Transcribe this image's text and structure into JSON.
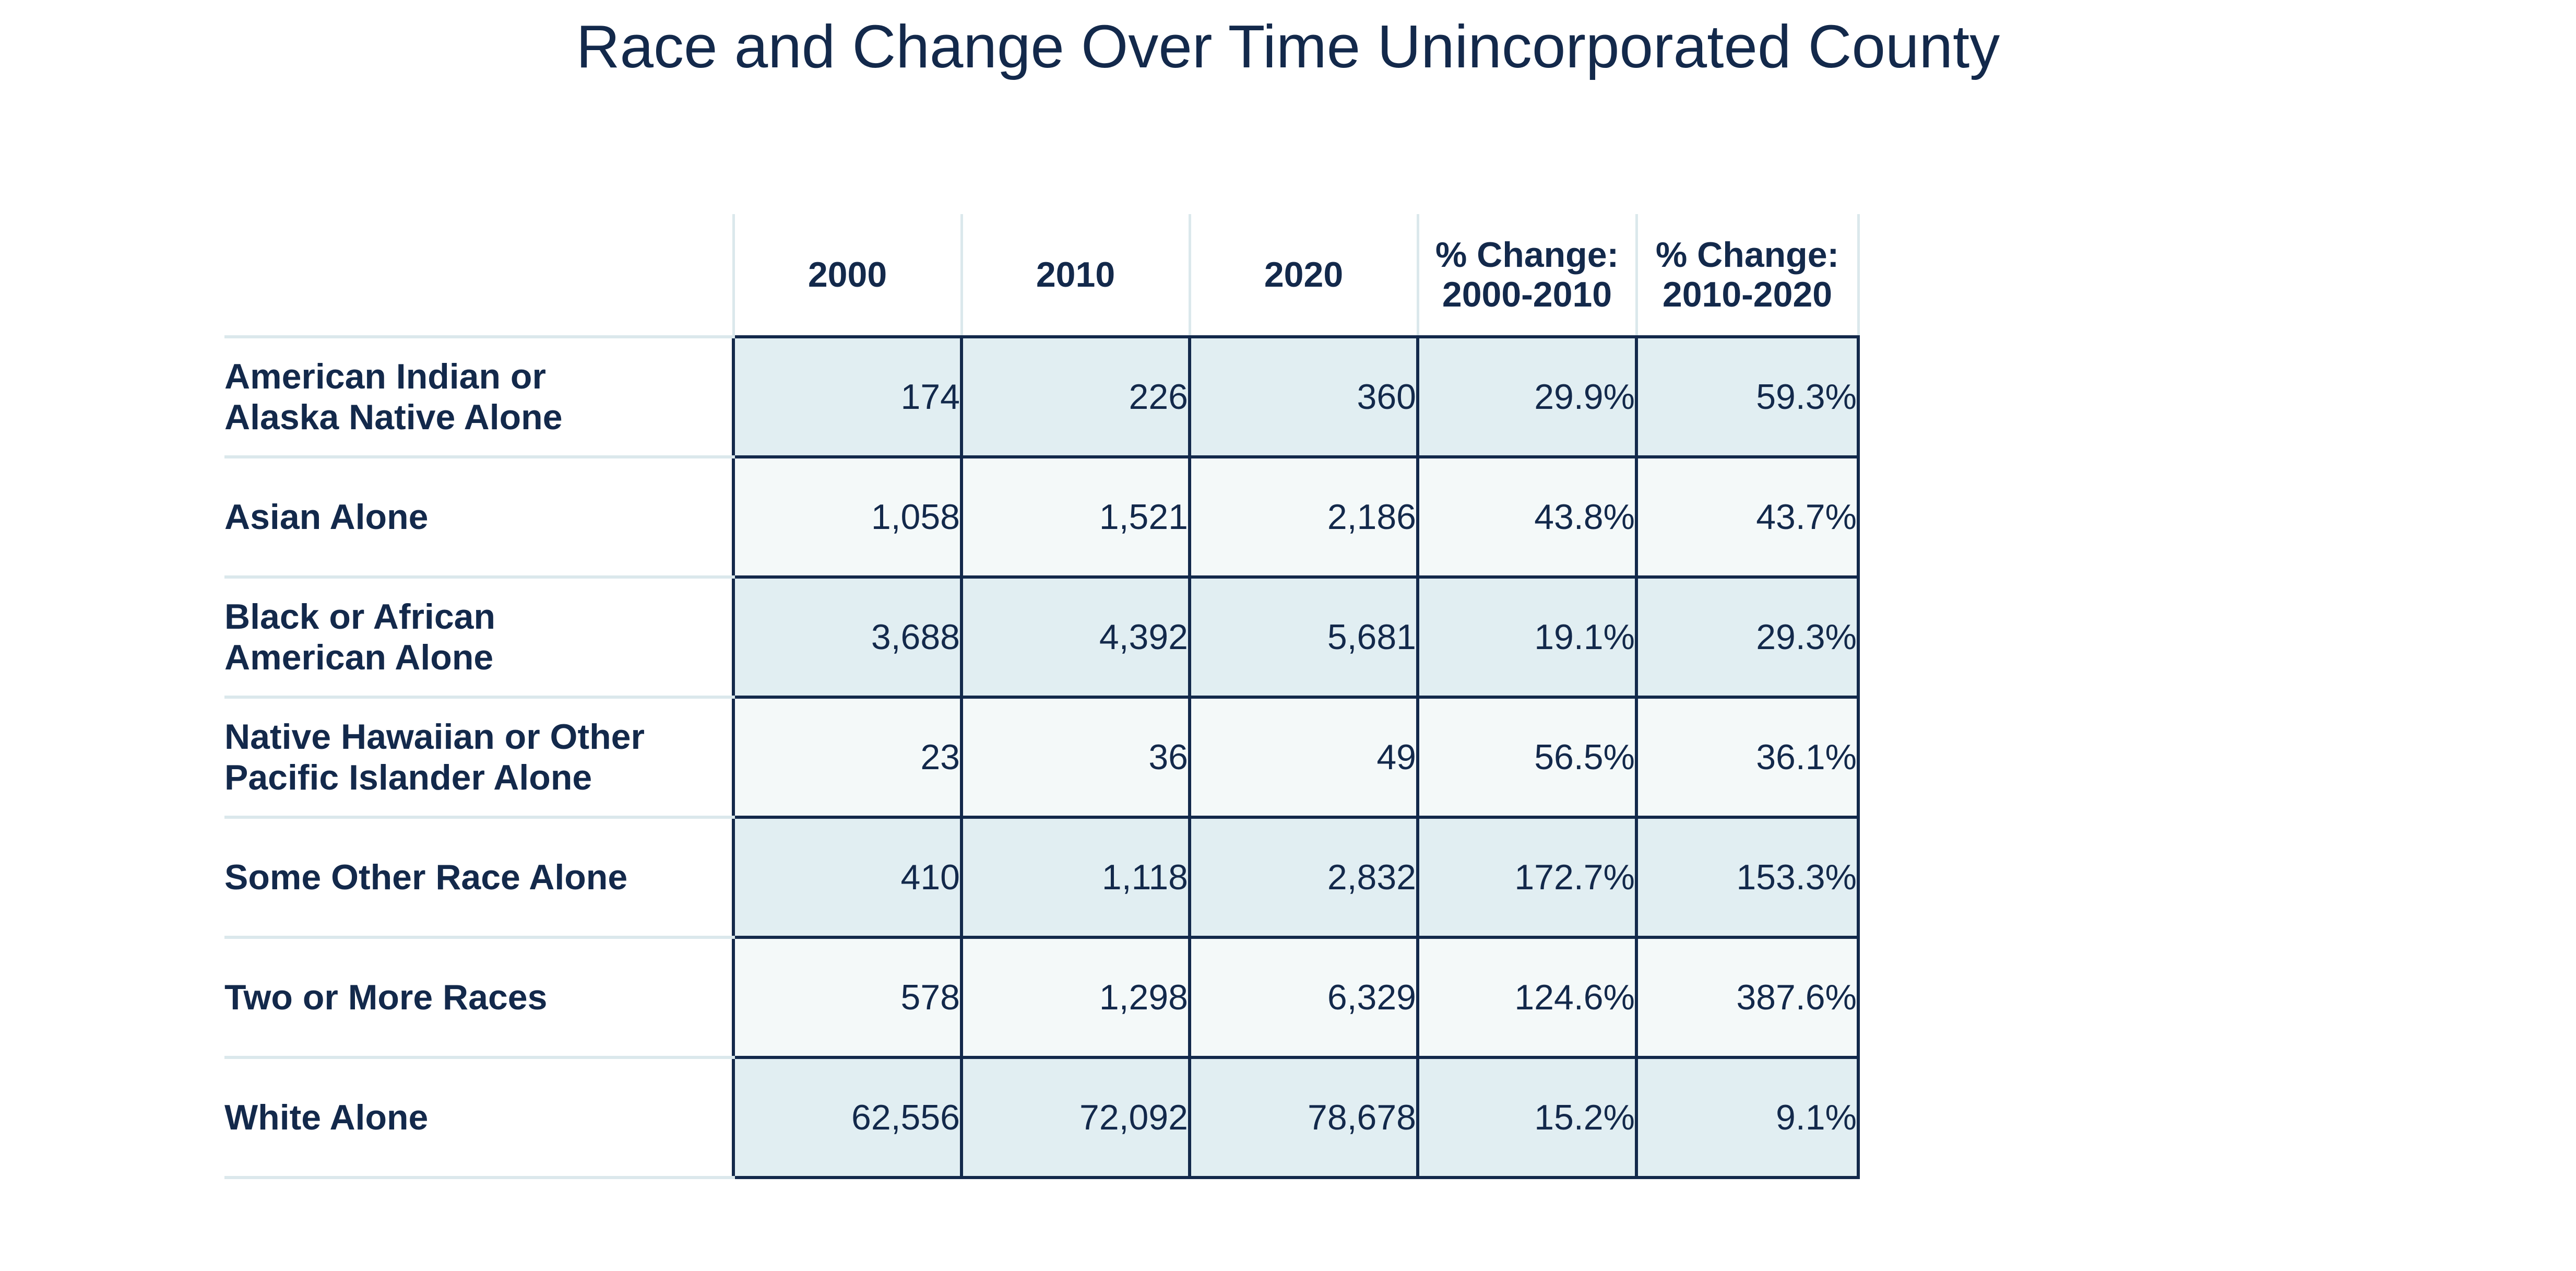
{
  "chart_data": {
    "type": "table",
    "title": "Race and Change Over Time Unincorporated County",
    "columns": [
      "2000",
      "2010",
      "2020",
      "% Change:\n2000-2010",
      "% Change:\n2010-2020"
    ],
    "rows": [
      {
        "label": "American Indian or\nAlaska Native Alone",
        "values": [
          "174",
          "226",
          "360",
          "29.9%",
          "59.3%"
        ]
      },
      {
        "label": "Asian Alone",
        "values": [
          "1,058",
          "1,521",
          "2,186",
          "43.8%",
          "43.7%"
        ]
      },
      {
        "label": "Black or African\n American Alone",
        "values": [
          "3,688",
          "4,392",
          "5,681",
          "19.1%",
          "29.3%"
        ]
      },
      {
        "label": "Native Hawaiian or Other\nPacific Islander Alone",
        "values": [
          "23",
          "36",
          "49",
          "56.5%",
          "36.1%"
        ]
      },
      {
        "label": "Some Other Race Alone",
        "values": [
          "410",
          "1,118",
          "2,832",
          "172.7%",
          "153.3%"
        ]
      },
      {
        "label": "Two or More Races",
        "values": [
          "578",
          "1,298",
          "6,329",
          "124.6%",
          "387.6%"
        ]
      },
      {
        "label": "White Alone",
        "values": [
          "62,556",
          "72,092",
          "78,678",
          "15.2%",
          "9.1%"
        ]
      }
    ],
    "colors": {
      "text": "#13294b",
      "border": "#13294b",
      "divider": "#dbe8ec",
      "row_fill_odd": "#e1eef2",
      "row_fill_even": "#f4f9f9"
    }
  }
}
